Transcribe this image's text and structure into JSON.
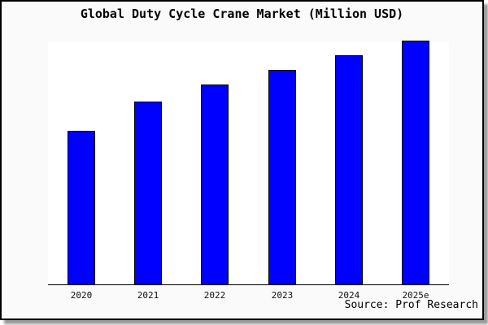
{
  "window": {
    "title": "Global Duty Cycle Crane Market (Million USD)"
  },
  "chart_data": {
    "type": "bar",
    "title": "Global Duty Cycle Crane Market (Million USD)",
    "categories": [
      "2020",
      "2021",
      "2022",
      "2023",
      "2024",
      "2025e"
    ],
    "values": [
      63,
      75,
      82,
      88,
      94,
      100
    ],
    "value_note": "y-axis has no ticks or labels in source; values are relative percent of tallest bar (2025e = 100)",
    "xlabel": "",
    "ylabel": "",
    "ylim": [
      0,
      100
    ],
    "grid": false,
    "legend": false,
    "bar_color": "#0000ff",
    "bar_border_color": "#000000",
    "plot_bg": "#ffffff",
    "page_bg": "#fafafa",
    "axis_color": "#000000"
  },
  "footer": {
    "source_label": "Source: Prof Research"
  }
}
